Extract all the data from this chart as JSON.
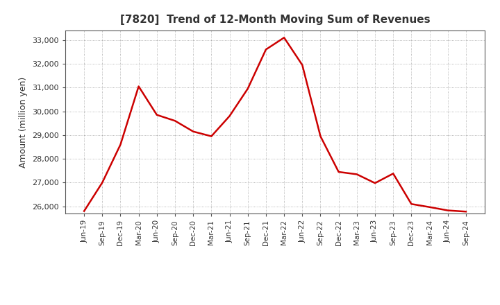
{
  "title": "[7820]  Trend of 12-Month Moving Sum of Revenues",
  "ylabel": "Amount (million yen)",
  "line_color": "#cc0000",
  "background_color": "#ffffff",
  "grid_color": "#999999",
  "ylim": [
    25700,
    33400
  ],
  "yticks": [
    26000,
    27000,
    28000,
    29000,
    30000,
    31000,
    32000,
    33000
  ],
  "labels": [
    "Jun-19",
    "Sep-19",
    "Dec-19",
    "Mar-20",
    "Jun-20",
    "Sep-20",
    "Dec-20",
    "Mar-21",
    "Jun-21",
    "Sep-21",
    "Dec-21",
    "Mar-22",
    "Jun-22",
    "Sep-22",
    "Dec-22",
    "Mar-23",
    "Jun-23",
    "Sep-23",
    "Dec-23",
    "Mar-24",
    "Jun-24",
    "Sep-24"
  ],
  "values": [
    25800,
    27000,
    28600,
    31050,
    29850,
    29600,
    29150,
    28950,
    29800,
    30950,
    32600,
    33100,
    31950,
    28950,
    27450,
    27350,
    26980,
    27380,
    26100,
    25970,
    25830,
    25780
  ]
}
